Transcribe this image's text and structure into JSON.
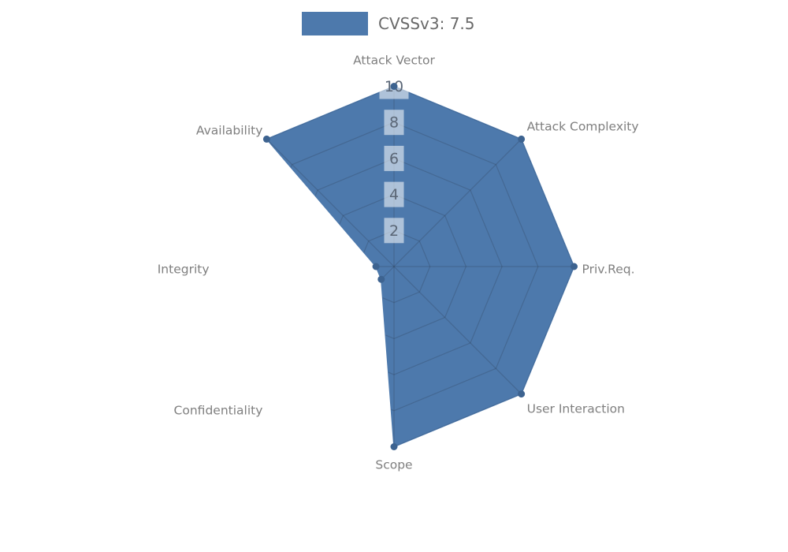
{
  "legend": {
    "label": "CVSSv3: 7.5"
  },
  "chart_data": {
    "type": "radar",
    "title": "",
    "categories": [
      "Attack Vector",
      "Attack Complexity",
      "Priv.Req.",
      "User Interaction",
      "Scope",
      "Confidentiality",
      "Integrity",
      "Availability"
    ],
    "series": [
      {
        "name": "CVSSv3: 7.5",
        "values": [
          10,
          10,
          10,
          10,
          10,
          1,
          1,
          10
        ]
      }
    ],
    "radial_ticks": [
      2,
      4,
      6,
      8,
      10
    ],
    "rmin": 0,
    "rmax": 10,
    "grid": "polygonal web, 8 spokes, visible only inside filled area",
    "legend_position": "top-center",
    "colors": {
      "series_fill": "#4d79ac",
      "marker": "#3d6390",
      "grid_line": "rgba(40,50,65,0.24)",
      "axis_label": "#7f7f7f",
      "tick_label": "#5a6676",
      "tick_box": "rgba(255,255,255,0.55)",
      "legend_text": "#696969"
    }
  }
}
